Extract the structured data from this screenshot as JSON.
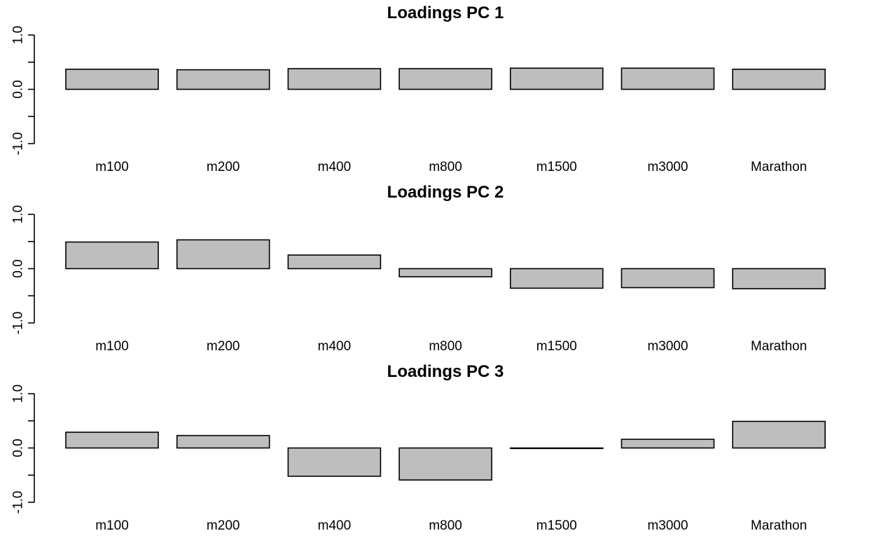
{
  "chart_data": [
    {
      "type": "bar",
      "title": "Loadings PC 1",
      "categories": [
        "m100",
        "m200",
        "m400",
        "m800",
        "m1500",
        "m3000",
        "Marathon"
      ],
      "values": [
        0.37,
        0.36,
        0.38,
        0.38,
        0.39,
        0.39,
        0.37
      ],
      "ylim": [
        -1.0,
        1.0
      ],
      "yticks": [
        -1.0,
        -0.5,
        0.0,
        0.5,
        1.0
      ],
      "ytick_labels": [
        "-1.0",
        "",
        "0.0",
        "",
        "1.0"
      ],
      "xlabel": "",
      "ylabel": "",
      "grid": false
    },
    {
      "type": "bar",
      "title": "Loadings PC 2",
      "categories": [
        "m100",
        "m200",
        "m400",
        "m800",
        "m1500",
        "m3000",
        "Marathon"
      ],
      "values": [
        0.49,
        0.53,
        0.25,
        -0.15,
        -0.36,
        -0.35,
        -0.37
      ],
      "ylim": [
        -1.0,
        1.0
      ],
      "yticks": [
        -1.0,
        -0.5,
        0.0,
        0.5,
        1.0
      ],
      "ytick_labels": [
        "-1.0",
        "",
        "0.0",
        "",
        "1.0"
      ],
      "xlabel": "",
      "ylabel": "",
      "grid": false
    },
    {
      "type": "bar",
      "title": "Loadings PC 3",
      "categories": [
        "m100",
        "m200",
        "m400",
        "m800",
        "m1500",
        "m3000",
        "Marathon"
      ],
      "values": [
        0.29,
        0.23,
        -0.52,
        -0.59,
        -0.01,
        0.16,
        0.49
      ],
      "ylim": [
        -1.0,
        1.0
      ],
      "yticks": [
        -1.0,
        -0.5,
        0.0,
        0.5,
        1.0
      ],
      "ytick_labels": [
        "-1.0",
        "",
        "0.0",
        "",
        "1.0"
      ],
      "xlabel": "",
      "ylabel": "",
      "grid": false
    }
  ]
}
